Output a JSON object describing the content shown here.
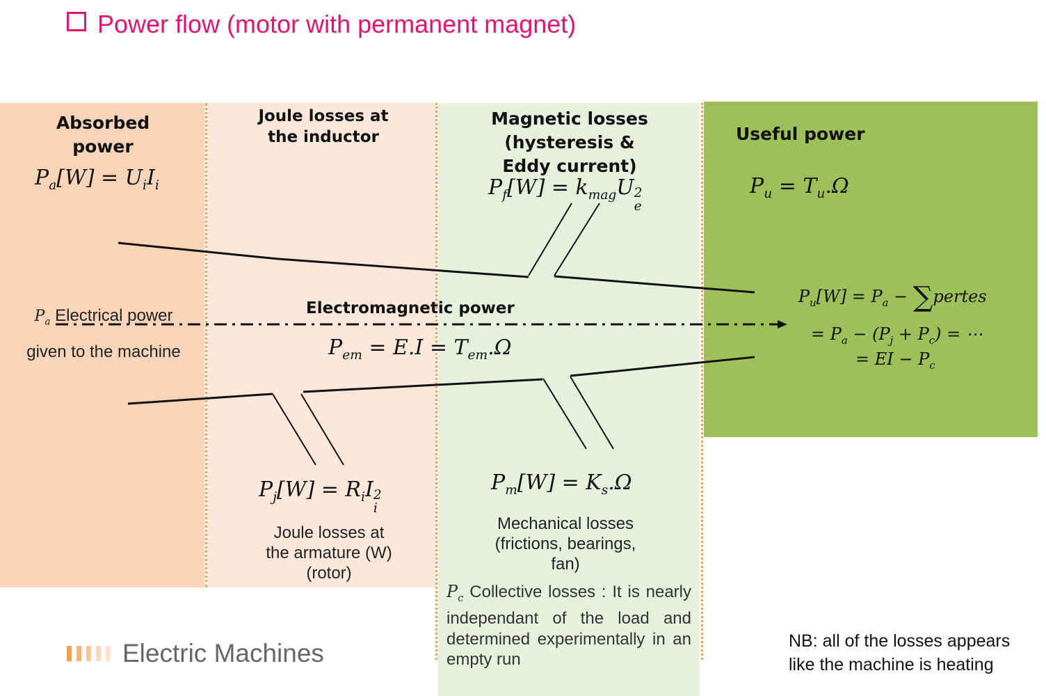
{
  "title": "Power flow (motor with permanent magnet)",
  "columns": {
    "absorbed": {
      "heading_1": "Absorbed",
      "heading_2": "power",
      "formula_lhs": "P",
      "formula_lhs_sub": "a",
      "formula_rhs": "[W] = U",
      "formula_u_sub": "i",
      "formula_i": "I",
      "formula_i_sub": "i"
    },
    "joule_inductor": {
      "heading_1": "Joule losses at",
      "heading_2": "the inductor"
    },
    "magnetic": {
      "heading_1": "Magnetic losses",
      "heading_2": "(hysteresis &",
      "heading_3": "Eddy current)",
      "formula_p": "P",
      "formula_p_sub": "f",
      "formula_mid": "[W] = k",
      "formula_k_sub": "mag",
      "formula_u": "U",
      "formula_u_sup": "2",
      "formula_u_sub": "e"
    },
    "useful": {
      "heading": "Useful power",
      "formula_p": "P",
      "formula_p_sub": "u",
      "formula_eq": " = T",
      "formula_t_sub": "u",
      "formula_end": ".Ω"
    }
  },
  "electrical_power": {
    "symbol": "P",
    "symbol_sub": "a",
    "label_1": " Electrical power",
    "label_2": "given to the machine"
  },
  "electromagnetic": {
    "label": "Electromagnetic power",
    "p": "P",
    "p_sub": "em",
    "mid": " =  E.I = T",
    "t_sub": "em",
    "end": ".Ω"
  },
  "useful_equations": {
    "line1_p": "P",
    "line1_p_sub": "u",
    "line1_mid": "[W] = P",
    "line1_a_sub": "a",
    "line1_minus": " − ",
    "line1_sum": "∑",
    "line1_end": "pertes",
    "line2_a": "= P",
    "line2_a_sub": "a",
    "line2_mid": " − (P",
    "line2_j_sub": "j",
    "line2_plus": " + P",
    "line2_c_sub": "c",
    "line2_end": ") = ⋯",
    "line3_a": "= EI − P",
    "line3_c_sub": "c"
  },
  "joule_armature": {
    "p": "P",
    "p_sub": "j",
    "mid": "[W] = R",
    "r_sub": "i",
    "i": "I",
    "i_sup": "2",
    "i_sub": "i",
    "label_1": "Joule losses at",
    "label_2": "the armature (W)",
    "label_3": "(rotor)"
  },
  "mechanical": {
    "p": "P",
    "p_sub": "m",
    "mid": "[W] = K",
    "k_sub": "s",
    "end": ".Ω",
    "label_1": "Mechanical losses",
    "label_2": "(frictions, bearings,",
    "label_3": "fan)"
  },
  "collective": {
    "symbol": "P",
    "symbol_sub": "c",
    "text": " Collective losses : It is nearly independant of the load and determined experimentally in an empty run"
  },
  "nb": {
    "line_1": "NB: all of the losses appears",
    "line_2": "like the machine is heating"
  },
  "logo": {
    "text": "Electric Machines",
    "bars": [
      "#f0a050",
      "#f3b678",
      "#f6c79b",
      "#f9d9bd",
      "#fbe6d5"
    ]
  },
  "colors": {
    "title": "#e0146f",
    "absorbed_bg": "#f8d5b8",
    "joule_bg": "#fbe8da",
    "magnetic_bg": "#e8f0dd",
    "useful_bg": "#9fbf5b",
    "dots": "#f0a050"
  }
}
